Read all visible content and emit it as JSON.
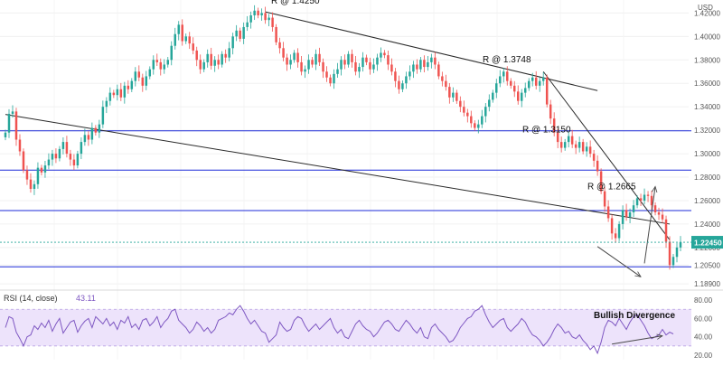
{
  "chart_data": [
    {
      "type": "candlestick",
      "currency_label": "USD",
      "price_axis": {
        "ylim": [
          1.186,
          1.428
        ],
        "tick_labels": [
          "1.42000",
          "1.40000",
          "1.38000",
          "1.36000",
          "1.34000",
          "1.32000",
          "1.30000",
          "1.28000",
          "1.26000",
          "1.24000",
          "1.22000",
          "1.20500",
          "1.18900"
        ],
        "tick_values": [
          1.42,
          1.4,
          1.38,
          1.36,
          1.34,
          1.32,
          1.3,
          1.28,
          1.26,
          1.24,
          1.22,
          1.205,
          1.189
        ]
      },
      "last_price": {
        "label": "1.22450",
        "value": 1.2245,
        "color": "#26a69a"
      },
      "colors": {
        "up": "#26a69a",
        "down": "#ef5350",
        "horizontal_levels": "#1e2bd8",
        "trendlines": "#2a2a2a",
        "arrows": "#4a4a4a"
      },
      "horizontal_levels": [
        1.3195,
        1.286,
        1.2515,
        1.2035
      ],
      "resistance_annotations": [
        {
          "label": "R @ 1.4250",
          "value": 1.425
        },
        {
          "label": "R @ 1.3748",
          "value": 1.3748
        },
        {
          "label": "R @ 1.3150",
          "value": 1.315
        },
        {
          "label": "R @ 1.2665",
          "value": 1.2665
        }
      ],
      "series_close_estimated": [
        1.318,
        1.334,
        1.336,
        1.312,
        1.302,
        1.286,
        1.278,
        1.27,
        1.274,
        1.288,
        1.284,
        1.29,
        1.295,
        1.3,
        1.296,
        1.304,
        1.31,
        1.3,
        1.295,
        1.29,
        1.3,
        1.31,
        1.316,
        1.312,
        1.322,
        1.318,
        1.325,
        1.34,
        1.345,
        1.352,
        1.35,
        1.355,
        1.348,
        1.358,
        1.355,
        1.362,
        1.37,
        1.365,
        1.358,
        1.366,
        1.372,
        1.38,
        1.378,
        1.372,
        1.376,
        1.38,
        1.392,
        1.402,
        1.41,
        1.396,
        1.4,
        1.394,
        1.388,
        1.38,
        1.372,
        1.378,
        1.385,
        1.375,
        1.38,
        1.376,
        1.385,
        1.382,
        1.39,
        1.4,
        1.405,
        1.398,
        1.408,
        1.412,
        1.418,
        1.422,
        1.418,
        1.42,
        1.414,
        1.416,
        1.408,
        1.395,
        1.39,
        1.382,
        1.376,
        1.38,
        1.386,
        1.378,
        1.37,
        1.372,
        1.38,
        1.376,
        1.385,
        1.378,
        1.37,
        1.365,
        1.36,
        1.368,
        1.372,
        1.38,
        1.376,
        1.385,
        1.378,
        1.37,
        1.374,
        1.382,
        1.378,
        1.372,
        1.376,
        1.382,
        1.386,
        1.384,
        1.376,
        1.37,
        1.362,
        1.355,
        1.36,
        1.366,
        1.37,
        1.376,
        1.372,
        1.38,
        1.374,
        1.378,
        1.382,
        1.376,
        1.366,
        1.362,
        1.357,
        1.348,
        1.352,
        1.345,
        1.34,
        1.335,
        1.332,
        1.326,
        1.322,
        1.325,
        1.332,
        1.34,
        1.346,
        1.352,
        1.36,
        1.366,
        1.37,
        1.362,
        1.358,
        1.353,
        1.345,
        1.352,
        1.356,
        1.362,
        1.365,
        1.358,
        1.362,
        1.365,
        1.342,
        1.33,
        1.318,
        1.31,
        1.305,
        1.31,
        1.315,
        1.308,
        1.305,
        1.31,
        1.302,
        1.306,
        1.3,
        1.294,
        1.285,
        1.268,
        1.255,
        1.245,
        1.232,
        1.228,
        1.24,
        1.252,
        1.246,
        1.25,
        1.256,
        1.262,
        1.26,
        1.265,
        1.264,
        1.256,
        1.25,
        1.248,
        1.244,
        1.225,
        1.205,
        1.212,
        1.22,
        1.2245
      ],
      "trendlines": [
        {
          "from": [
            0,
            1.3335
          ],
          "to": [
            184,
            1.24
          ]
        },
        {
          "from": [
            72,
            1.421
          ],
          "to": [
            164,
            1.3538
          ]
        },
        {
          "from": [
            149,
            1.37
          ],
          "to": [
            184,
            1.2265
          ]
        }
      ],
      "price_arrows": [
        {
          "from": [
            164,
            1.2208
          ],
          "to": [
            176,
            1.195
          ]
        },
        {
          "from": [
            177,
            1.2065
          ],
          "to": [
            180,
            1.272
          ]
        }
      ],
      "rsi": {
        "label": "RSI (14, close)",
        "value_label": "43.11",
        "value": 43.11,
        "ylim": [
          15,
          88
        ],
        "band": [
          30,
          70
        ],
        "tick_labels": [
          "80.00",
          "60.00",
          "40.00",
          "20.00"
        ],
        "tick_values": [
          80,
          60,
          40,
          20
        ],
        "line_color": "#7e57c2",
        "band_color": "#ede3fb",
        "values_estimated": [
          50,
          62,
          60,
          45,
          38,
          30,
          40,
          42,
          52,
          48,
          55,
          50,
          58,
          46,
          54,
          60,
          44,
          50,
          56,
          58,
          45,
          52,
          57,
          60,
          50,
          62,
          58,
          54,
          60,
          52,
          56,
          48,
          58,
          55,
          62,
          50,
          54,
          48,
          58,
          60,
          52,
          56,
          62,
          50,
          56,
          60,
          68,
          70,
          58,
          54,
          50,
          44,
          48,
          56,
          52,
          46,
          50,
          44,
          48,
          58,
          60,
          62,
          66,
          64,
          70,
          74,
          68,
          60,
          54,
          58,
          52,
          46,
          44,
          34,
          38,
          42,
          56,
          50,
          46,
          48,
          58,
          62,
          60,
          52,
          46,
          50,
          54,
          48,
          52,
          56,
          60,
          50,
          44,
          48,
          40,
          38,
          46,
          54,
          58,
          52,
          48,
          46,
          40,
          44,
          50,
          56,
          58,
          54,
          48,
          46,
          52,
          58,
          54,
          48,
          44,
          50,
          40,
          38,
          50,
          54,
          48,
          44,
          40,
          34,
          36,
          42,
          50,
          55,
          60,
          62,
          68,
          70,
          74,
          64,
          56,
          50,
          54,
          58,
          60,
          50,
          46,
          50,
          54,
          60,
          56,
          48,
          42,
          40,
          36,
          30,
          34,
          40,
          48,
          54,
          50,
          44,
          46,
          40,
          38,
          42,
          36,
          32,
          26,
          30,
          22,
          34,
          50,
          58,
          56,
          52,
          60,
          54,
          48,
          56,
          62,
          64,
          58,
          52,
          44,
          38,
          40,
          42,
          48,
          42,
          45,
          43.11
        ],
        "divergence_label": "Bullish Divergence",
        "divergence_arrow": {
          "from": [
            168,
            32
          ],
          "to": [
            182,
            41
          ]
        }
      }
    }
  ]
}
